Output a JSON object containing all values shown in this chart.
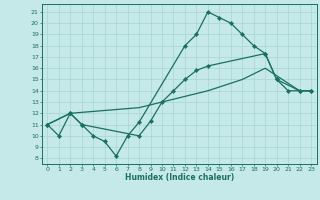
{
  "xlabel": "Humidex (Indice chaleur)",
  "bg_color": "#c5e8e8",
  "line_color": "#1a7060",
  "grid_color": "#a8d4d4",
  "xlim": [
    -0.5,
    23.5
  ],
  "ylim": [
    7.5,
    21.7
  ],
  "xticks": [
    0,
    1,
    2,
    3,
    4,
    5,
    6,
    7,
    8,
    9,
    10,
    11,
    12,
    13,
    14,
    15,
    16,
    17,
    18,
    19,
    20,
    21,
    22,
    23
  ],
  "yticks": [
    8,
    9,
    10,
    11,
    12,
    13,
    14,
    15,
    16,
    17,
    18,
    19,
    20,
    21
  ],
  "line1_x": [
    0,
    1,
    2,
    3,
    4,
    5,
    6,
    7,
    8,
    12,
    13,
    14,
    15,
    16,
    17,
    18,
    19,
    20,
    21,
    22,
    23
  ],
  "line1_y": [
    11,
    10,
    12,
    11,
    10,
    9.5,
    8.2,
    10,
    11.2,
    18,
    19,
    21,
    20.5,
    20,
    19,
    18,
    17.3,
    15,
    14,
    14,
    14
  ],
  "line2_x": [
    0,
    2,
    3,
    8,
    9,
    10,
    11,
    12,
    13,
    14,
    19,
    20,
    22,
    23
  ],
  "line2_y": [
    11,
    12,
    11,
    10,
    11.3,
    13,
    14,
    15,
    15.8,
    16.2,
    17.3,
    15,
    14,
    14
  ],
  "line3_x": [
    0,
    2,
    8,
    10,
    12,
    14,
    17,
    19,
    22,
    23
  ],
  "line3_y": [
    11,
    12,
    12.5,
    13,
    13.5,
    14,
    15,
    16,
    14,
    14
  ]
}
